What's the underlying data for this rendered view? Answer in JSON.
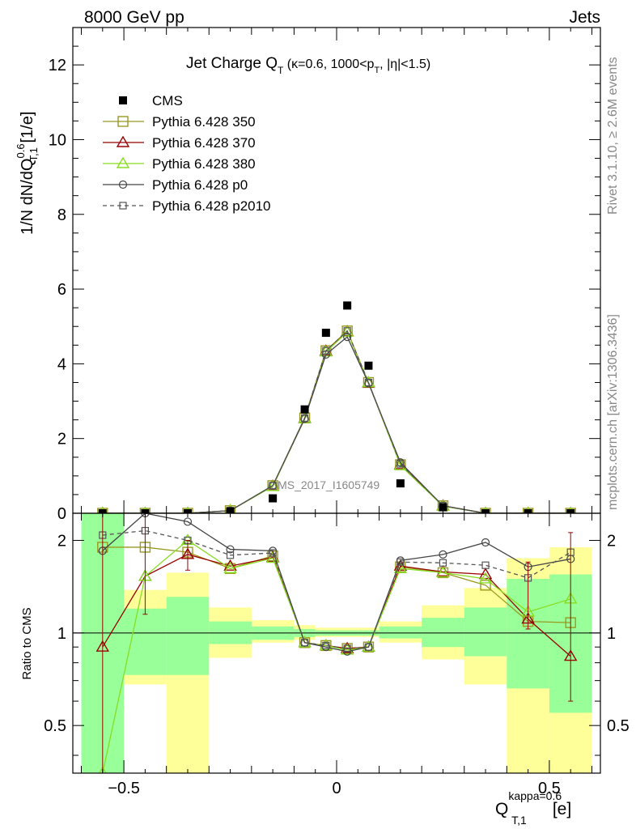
{
  "header": {
    "left": "8000 GeV pp",
    "right": "Jets",
    "side_top": "Rivet 3.1.10, ≥ 2.6M events",
    "side_bottom": "mcplots.cern.ch [arXiv:1306.3436]",
    "analysis_id": "CMS_2017_I1605749"
  },
  "main_plot": {
    "title": "Jet Charge Q",
    "title_sub": "T",
    "title_tail": " (κ=0.6, 1000<p",
    "title_tail_sub": "T",
    "title_end": ", |η|<1.5)",
    "ylabel": "1/N dN/dQ",
    "ylabel_sup": "0.6",
    "ylabel_sub": "T,1",
    "ylabel_unit": " [1/e]",
    "yticks": [
      "0",
      "2",
      "4",
      "6",
      "8",
      "10",
      "12"
    ]
  },
  "ratio_plot": {
    "ylabel": "Ratio to CMS",
    "yticks": [
      "0.5",
      "1",
      "2"
    ]
  },
  "xaxis": {
    "label": "Q",
    "label_sup": "kappa=0.6",
    "label_sub": "T,1",
    "label_unit": "[e]",
    "ticks": [
      "−0.5",
      "0",
      "0.5"
    ]
  },
  "legend": [
    {
      "name": "CMS",
      "color": "#000000",
      "marker": "filled-square",
      "line": "none"
    },
    {
      "name": "Pythia 6.428 350",
      "color": "#999922",
      "marker": "open-square",
      "line": "solid"
    },
    {
      "name": "Pythia 6.428 370",
      "color": "#990000",
      "marker": "open-triangle",
      "line": "solid"
    },
    {
      "name": "Pythia 6.428 380",
      "color": "#88dd22",
      "marker": "open-triangle",
      "line": "solid"
    },
    {
      "name": "Pythia 6.428 p0",
      "color": "#444444",
      "marker": "open-circle",
      "line": "solid"
    },
    {
      "name": "Pythia 6.428 p2010",
      "color": "#555555",
      "marker": "open-square-small",
      "line": "dashed"
    }
  ],
  "chart_data": {
    "type": "line",
    "x": [
      -0.55,
      -0.45,
      -0.35,
      -0.25,
      -0.15,
      -0.075,
      -0.025,
      0.025,
      0.075,
      0.15,
      0.25,
      0.35,
      0.45,
      0.55
    ],
    "xlim": [
      -0.62,
      0.62
    ],
    "main_ylim": [
      0,
      13
    ],
    "ratio_ylim": [
      0.35,
      2.45
    ],
    "ratio_log": true,
    "cms": [
      0.0,
      0.0,
      0.0,
      0.05,
      0.4,
      2.78,
      4.83,
      5.56,
      3.95,
      0.8,
      0.16,
      0.0,
      0.0,
      0.0
    ],
    "series": [
      {
        "name": "Pythia 6.428 350",
        "values": [
          0.0,
          0.0,
          0.0,
          0.07,
          0.74,
          2.55,
          4.35,
          4.88,
          3.5,
          1.3,
          0.2,
          0.0,
          0.0,
          0.0
        ],
        "ratio": [
          1.9,
          1.9,
          1.83,
          1.62,
          1.78,
          0.93,
          0.91,
          0.89,
          0.9,
          1.64,
          1.57,
          1.43,
          1.09,
          1.08
        ]
      },
      {
        "name": "Pythia 6.428 370",
        "values": [
          0.0,
          0.0,
          0.0,
          0.07,
          0.73,
          2.54,
          4.34,
          4.86,
          3.49,
          1.3,
          0.2,
          0.0,
          0.0,
          0.0
        ],
        "ratio": [
          0.9,
          1.53,
          1.8,
          1.65,
          1.76,
          0.93,
          0.91,
          0.89,
          0.9,
          1.65,
          1.58,
          1.55,
          1.11,
          0.84
        ]
      },
      {
        "name": "Pythia 6.428 380",
        "values": [
          0.0,
          0.0,
          0.0,
          0.07,
          0.72,
          2.53,
          4.32,
          4.85,
          3.5,
          1.28,
          0.19,
          0.0,
          0.0,
          0.0
        ],
        "ratio": [
          0.3,
          1.53,
          2.0,
          1.62,
          1.75,
          0.93,
          0.91,
          0.88,
          0.9,
          1.62,
          1.57,
          1.5,
          1.17,
          1.29
        ]
      },
      {
        "name": "Pythia 6.428 p0",
        "values": [
          0.0,
          0.0,
          0.0,
          0.07,
          0.74,
          2.53,
          4.25,
          4.72,
          3.48,
          1.36,
          0.2,
          0.0,
          0.0,
          0.0
        ],
        "ratio": [
          1.85,
          2.45,
          2.3,
          1.87,
          1.85,
          0.93,
          0.9,
          0.87,
          0.9,
          1.72,
          1.8,
          1.97,
          1.64,
          1.74
        ]
      },
      {
        "name": "Pythia 6.428 p2010",
        "values": [
          0.0,
          0.0,
          0.0,
          0.07,
          0.74,
          2.55,
          4.35,
          4.88,
          3.5,
          1.32,
          0.2,
          0.0,
          0.0,
          0.0
        ],
        "ratio": [
          2.08,
          2.15,
          2.0,
          1.79,
          1.82,
          0.93,
          0.91,
          0.89,
          0.9,
          1.7,
          1.69,
          1.66,
          1.51,
          1.83
        ]
      }
    ],
    "uncertainty_bands": {
      "x_edges": [
        -0.6,
        -0.5,
        -0.4,
        -0.3,
        -0.2,
        -0.1,
        -0.05,
        0.0,
        0.05,
        0.1,
        0.2,
        0.3,
        0.4,
        0.5,
        0.6
      ],
      "inner": [
        [
          0.35,
          2.45
        ],
        [
          0.73,
          1.2
        ],
        [
          0.73,
          1.31
        ],
        [
          0.92,
          1.09
        ],
        [
          0.95,
          1.05
        ],
        [
          0.97,
          1.03
        ],
        [
          0.98,
          1.02
        ],
        [
          0.98,
          1.02
        ],
        [
          0.98,
          1.02
        ],
        [
          0.96,
          1.05
        ],
        [
          0.9,
          1.12
        ],
        [
          0.84,
          1.21
        ],
        [
          0.66,
          1.5
        ],
        [
          0.55,
          1.55
        ]
      ],
      "outer": [
        [
          0.35,
          2.45
        ],
        [
          0.68,
          1.38
        ],
        [
          0.35,
          1.57
        ],
        [
          0.83,
          1.21
        ],
        [
          0.93,
          1.1
        ],
        [
          0.95,
          1.06
        ],
        [
          0.97,
          1.04
        ],
        [
          0.97,
          1.04
        ],
        [
          0.97,
          1.04
        ],
        [
          0.93,
          1.09
        ],
        [
          0.82,
          1.23
        ],
        [
          0.68,
          1.4
        ],
        [
          0.35,
          1.75
        ],
        [
          0.35,
          1.9
        ]
      ]
    },
    "error_bars": {
      "x": [
        -0.55,
        -0.45,
        -0.35,
        0.45,
        0.55
      ],
      "low": [
        0.35,
        1.15,
        1.6,
        1.03,
        0.6
      ],
      "high": [
        2.45,
        2.45,
        2.0,
        1.7,
        2.12
      ]
    }
  }
}
